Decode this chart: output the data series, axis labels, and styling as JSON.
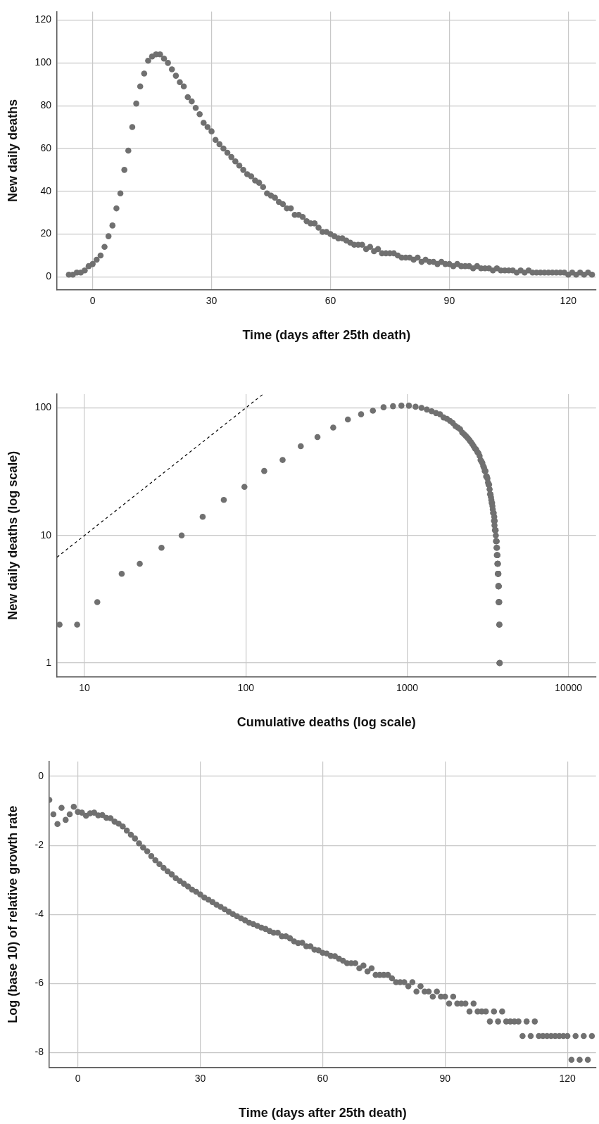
{
  "chart_data": [
    {
      "type": "scatter",
      "xlabel": "Time (days after 25th death)",
      "ylabel": "New daily deaths",
      "color": "#707070",
      "marker": "circle",
      "grid": true,
      "xlim": [
        -9,
        127
      ],
      "ylim": [
        -6,
        124
      ],
      "xticks": [
        0,
        30,
        60,
        90,
        120
      ],
      "yticks": [
        0,
        20,
        40,
        60,
        80,
        100,
        120
      ],
      "x": [
        -6,
        -5,
        -4,
        -3,
        -2,
        -1,
        0,
        1,
        2,
        3,
        4,
        5,
        6,
        7,
        8,
        9,
        10,
        11,
        12,
        13,
        14,
        15,
        16,
        17,
        18,
        19,
        20,
        21,
        22,
        23,
        24,
        25,
        26,
        27,
        28,
        29,
        30,
        31,
        32,
        33,
        34,
        35,
        36,
        37,
        38,
        39,
        40,
        41,
        42,
        43,
        44,
        45,
        46,
        47,
        48,
        49,
        50,
        51,
        52,
        53,
        54,
        55,
        56,
        57,
        58,
        59,
        60,
        61,
        62,
        63,
        64,
        65,
        66,
        67,
        68,
        69,
        70,
        71,
        72,
        73,
        74,
        75,
        76,
        77,
        78,
        79,
        80,
        81,
        82,
        83,
        84,
        85,
        86,
        87,
        88,
        89,
        90,
        91,
        92,
        93,
        94,
        95,
        96,
        97,
        98,
        99,
        100,
        101,
        102,
        103,
        104,
        105,
        106,
        107,
        108,
        109,
        110,
        111,
        112,
        113,
        114,
        115,
        116,
        117,
        118,
        119,
        120,
        121,
        122,
        123,
        124,
        125,
        126
      ],
      "values": [
        1,
        1,
        2,
        2,
        3,
        5,
        6,
        8,
        10,
        14,
        19,
        24,
        32,
        39,
        50,
        59,
        70,
        81,
        89,
        95,
        101,
        103,
        104,
        104,
        102,
        100,
        97,
        94,
        91,
        89,
        84,
        82,
        79,
        76,
        72,
        70,
        68,
        64,
        62,
        60,
        58,
        56,
        54,
        52,
        50,
        48,
        47,
        45,
        44,
        42,
        39,
        38,
        37,
        35,
        34,
        32,
        32,
        29,
        29,
        28,
        26,
        25,
        25,
        23,
        21,
        21,
        20,
        19,
        18,
        18,
        17,
        16,
        15,
        15,
        15,
        13,
        14,
        12,
        13,
        11,
        11,
        11,
        11,
        10,
        9,
        9,
        9,
        8,
        9,
        7,
        8,
        7,
        7,
        6,
        7,
        6,
        6,
        5,
        6,
        5,
        5,
        5,
        4,
        5,
        4,
        4,
        4,
        3,
        4,
        3,
        3,
        3,
        3,
        2,
        3,
        2,
        3,
        2,
        2,
        2,
        2,
        2,
        2,
        2,
        2,
        2,
        1,
        2,
        1,
        2,
        1,
        2,
        1
      ]
    },
    {
      "type": "scatter",
      "xlabel": "Cumulative deaths (log scale)",
      "ylabel": "New daily deaths (log scale)",
      "log": "xy",
      "marker": "circle",
      "grid": true,
      "xlim": [
        6.75,
        14800
      ],
      "ylim": [
        0.78,
        128
      ],
      "xticks": [
        10,
        100,
        1000,
        10000
      ],
      "yticks": [
        1,
        10,
        100
      ],
      "series": [
        {
          "type": "scatter",
          "color": "#707070",
          "x": [
            7,
            9,
            12,
            17,
            22,
            30,
            40,
            54,
            73,
            98,
            130,
            169,
            219,
            278,
            348,
            429,
            518,
            613,
            714,
            817,
            921,
            1025,
            1127,
            1227,
            1324,
            1418,
            1509,
            1598,
            1682,
            1764,
            1843,
            1919,
            1991,
            2061,
            2129,
            2193,
            2255,
            2315,
            2373,
            2429,
            2483,
            2535,
            2585,
            2633,
            2680,
            2725,
            2769,
            2811,
            2850,
            2888,
            2925,
            2960,
            2994,
            3026,
            3058,
            3087,
            3116,
            3144,
            3170,
            3195,
            3220,
            3243,
            3264,
            3285,
            3305,
            3324,
            3342,
            3360,
            3377,
            3393,
            3408,
            3423,
            3438,
            3451,
            3465,
            3477,
            3490,
            3501,
            3512,
            3523,
            3534,
            3544,
            3553,
            3562,
            3571,
            3579,
            3588,
            3595,
            3603,
            3610,
            3617,
            3623,
            3630,
            3636,
            3642,
            3647,
            3653,
            3658,
            3663,
            3668,
            3672,
            3677,
            3681,
            3685,
            3689,
            3692,
            3696,
            3699,
            3705,
            3708,
            3713,
            3718,
            3722,
            3732,
            3737,
            3740,
            3743,
            3746
          ],
          "values": [
            2,
            2,
            3,
            5,
            6,
            8,
            10,
            14,
            19,
            24,
            32,
            39,
            50,
            59,
            70,
            81,
            89,
            95,
            101,
            103,
            104,
            104,
            102,
            100,
            97,
            94,
            91,
            89,
            84,
            82,
            79,
            76,
            72,
            70,
            68,
            64,
            62,
            60,
            58,
            56,
            54,
            52,
            50,
            48,
            47,
            45,
            44,
            42,
            39,
            38,
            37,
            35,
            34,
            32,
            32,
            29,
            29,
            28,
            26,
            25,
            25,
            23,
            21,
            21,
            20,
            19,
            18,
            18,
            17,
            16,
            15,
            15,
            15,
            13,
            14,
            12,
            13,
            11,
            11,
            11,
            11,
            10,
            9,
            9,
            9,
            8,
            9,
            7,
            8,
            7,
            7,
            6,
            7,
            6,
            6,
            5,
            6,
            5,
            5,
            5,
            4,
            5,
            4,
            4,
            4,
            3,
            4,
            3,
            3,
            3,
            3,
            3,
            2,
            2,
            1,
            1,
            1,
            1
          ]
        },
        {
          "type": "line",
          "color": "#000000",
          "line_style": "dashed",
          "marker": "none",
          "x": [
            6.75,
            128
          ],
          "values": [
            6.75,
            128
          ]
        }
      ]
    },
    {
      "type": "scatter",
      "xlabel": "Time (days after 25th death)",
      "ylabel": "Log (base 10) of relative growth rate",
      "color": "#707070",
      "marker": "circle",
      "grid": true,
      "xlim": [
        -7,
        127
      ],
      "ylim": [
        -8.43,
        0.43
      ],
      "xticks": [
        0,
        30,
        60,
        90,
        120
      ],
      "yticks": [
        -8,
        -6,
        -4,
        -2,
        0
      ],
      "x": [
        -7,
        -6,
        -5,
        -4,
        -3,
        -2,
        -1,
        0,
        1,
        2,
        3,
        4,
        5,
        6,
        7,
        8,
        9,
        10,
        11,
        12,
        13,
        14,
        15,
        16,
        17,
        18,
        19,
        20,
        21,
        22,
        23,
        24,
        25,
        26,
        27,
        28,
        29,
        30,
        31,
        32,
        33,
        34,
        35,
        36,
        37,
        38,
        39,
        40,
        41,
        42,
        43,
        44,
        45,
        46,
        47,
        48,
        49,
        50,
        51,
        52,
        53,
        54,
        55,
        56,
        57,
        58,
        59,
        60,
        61,
        62,
        63,
        64,
        65,
        66,
        67,
        68,
        69,
        70,
        71,
        72,
        73,
        74,
        75,
        76,
        77,
        78,
        79,
        80,
        81,
        82,
        83,
        84,
        85,
        86,
        87,
        88,
        89,
        90,
        91,
        92,
        93,
        94,
        95,
        96,
        97,
        98,
        99,
        100,
        101,
        102,
        103,
        104,
        105,
        106,
        107,
        108,
        109,
        110,
        111,
        112,
        113,
        114,
        115,
        116,
        117,
        118,
        119,
        120,
        121,
        122,
        123,
        124,
        125,
        126
      ],
      "values": [
        -0.68,
        -1.1,
        -1.38,
        -0.91,
        -1.26,
        -1.1,
        -0.88,
        -1.03,
        -1.05,
        -1.14,
        -1.07,
        -1.05,
        -1.13,
        -1.12,
        -1.2,
        -1.21,
        -1.31,
        -1.37,
        -1.45,
        -1.57,
        -1.69,
        -1.8,
        -1.94,
        -2.06,
        -2.17,
        -2.31,
        -2.43,
        -2.54,
        -2.65,
        -2.75,
        -2.84,
        -2.95,
        -3.03,
        -3.11,
        -3.19,
        -3.28,
        -3.34,
        -3.42,
        -3.51,
        -3.57,
        -3.64,
        -3.72,
        -3.78,
        -3.85,
        -3.92,
        -3.99,
        -4.05,
        -4.11,
        -4.17,
        -4.24,
        -4.28,
        -4.33,
        -4.38,
        -4.42,
        -4.48,
        -4.53,
        -4.53,
        -4.63,
        -4.63,
        -4.69,
        -4.78,
        -4.83,
        -4.82,
        -4.92,
        -4.92,
        -5.02,
        -5.04,
        -5.11,
        -5.13,
        -5.2,
        -5.21,
        -5.28,
        -5.34,
        -5.41,
        -5.41,
        -5.41,
        -5.56,
        -5.48,
        -5.65,
        -5.56,
        -5.75,
        -5.75,
        -5.75,
        -5.75,
        -5.85,
        -5.96,
        -5.96,
        -5.96,
        -6.08,
        -5.96,
        -6.23,
        -6.08,
        -6.23,
        -6.23,
        -6.38,
        -6.23,
        -6.38,
        -6.38,
        -6.58,
        -6.38,
        -6.58,
        -6.58,
        -6.58,
        -6.81,
        -6.58,
        -6.81,
        -6.81,
        -6.81,
        -7.1,
        -6.81,
        -7.1,
        -6.81,
        -7.1,
        -7.1,
        -7.1,
        -7.1,
        -7.52,
        -7.1,
        -7.52,
        -7.1,
        -7.52,
        -7.52,
        -7.52,
        -7.52,
        -7.52,
        -7.52,
        -7.52,
        -7.52,
        -8.21,
        -7.52,
        -8.21,
        -7.52,
        -8.21,
        -7.52
      ]
    }
  ]
}
